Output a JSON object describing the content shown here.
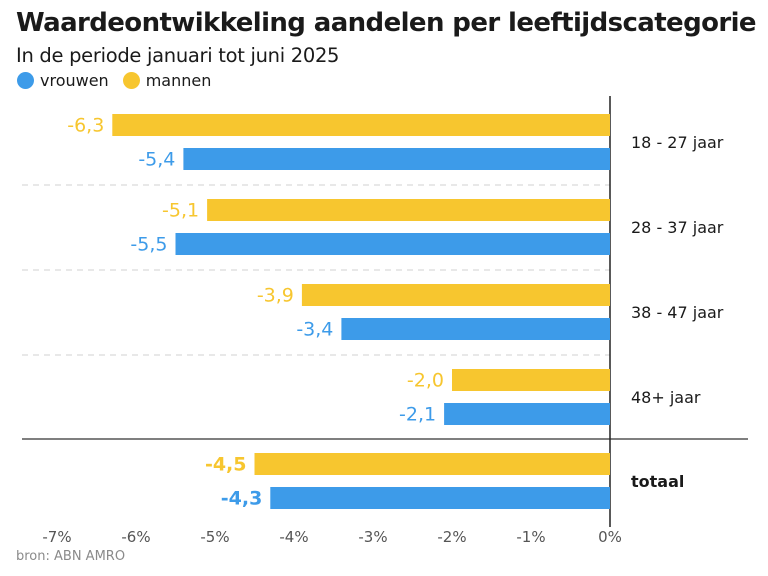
{
  "title": "Waardeontwikkeling aandelen per leeftijdscategorie",
  "subtitle": "In de periode januari tot juni 2025",
  "source": "bron: ABN AMRO",
  "colors": {
    "vrouwen": "#3d9be9",
    "mannen": "#f7c62f"
  },
  "legend": [
    {
      "name": "vrouwen",
      "color": "#3d9be9"
    },
    {
      "name": "mannen",
      "color": "#f7c62f"
    }
  ],
  "chart_data": {
    "type": "bar",
    "orientation": "horizontal",
    "categories": [
      "18 - 27 jaar",
      "28 - 37 jaar",
      "38 - 47 jaar",
      "48+ jaar",
      "totaal"
    ],
    "series": [
      {
        "name": "mannen",
        "values": [
          -6.3,
          -5.1,
          -3.9,
          -2.0,
          -4.5
        ],
        "labels": [
          "-6,3",
          "-5,1",
          "-3,9",
          "-2,0",
          "-4,5"
        ]
      },
      {
        "name": "vrouwen",
        "values": [
          -5.4,
          -5.5,
          -3.4,
          -2.1,
          -4.3
        ],
        "labels": [
          "-5,4",
          "-5,5",
          "-3,4",
          "-2,1",
          "-4,3"
        ]
      }
    ],
    "xlim": [
      -7,
      0
    ],
    "xticks": [
      "-7%",
      "-6%",
      "-5%",
      "-4%",
      "-3%",
      "-2%",
      "-1%",
      "0%"
    ],
    "grid": "dashed separators between age groups",
    "legend_position": "top-left"
  }
}
